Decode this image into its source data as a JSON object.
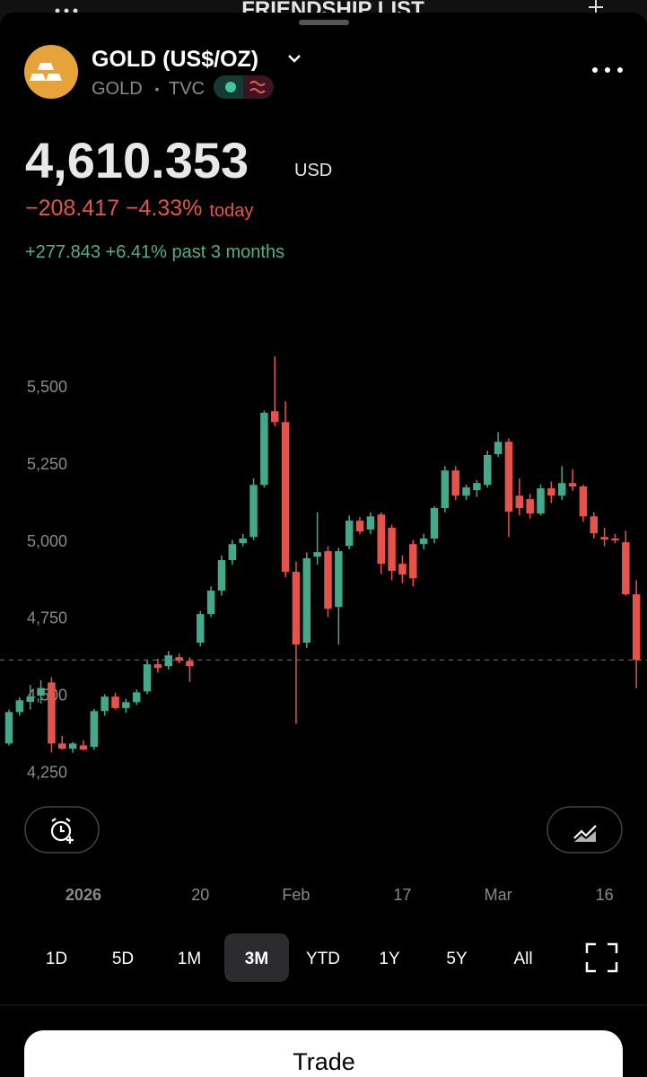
{
  "header": {
    "behind_title": "FRIENDSHIP LIST"
  },
  "instrument": {
    "name": "GOLD (US$/OZ)",
    "symbol": "GOLD",
    "separator": "•",
    "exchange": "TVC"
  },
  "quote": {
    "price": "4,610.353",
    "currency": "USD",
    "change_today": "−208.417 −4.33%",
    "today_label": "today",
    "change_period": "+277.843 +6.41% past 3 months"
  },
  "chart_data": {
    "type": "candlestick",
    "categories": [
      null,
      null,
      null,
      null,
      null,
      null,
      null,
      "2026",
      null,
      null,
      null,
      null,
      null,
      null,
      null,
      null,
      null,
      null,
      "20",
      null,
      null,
      null,
      null,
      null,
      null,
      null,
      null,
      "Feb",
      null,
      null,
      null,
      null,
      null,
      null,
      null,
      null,
      null,
      "17",
      null,
      null,
      null,
      null,
      null,
      null,
      null,
      null,
      "Mar",
      null,
      null,
      null,
      null,
      null,
      null,
      null,
      null,
      null,
      "16",
      null,
      null,
      null
    ],
    "open": [
      4340,
      4442,
      4475,
      4495,
      4538,
      4340,
      4323,
      4334,
      4329,
      4445,
      4492,
      4455,
      4474,
      4509,
      4597,
      4591,
      4620,
      4608,
      4667,
      4760,
      4836,
      4935,
      4990,
      5010,
      5179,
      5418,
      5383,
      4897,
      4667,
      4946,
      4964,
      4783,
      4981,
      5063,
      5034,
      5083,
      5040,
      4923,
      4987,
      4987,
      5005,
      5104,
      5226,
      5144,
      5162,
      5179,
      5279,
      5319,
      5144,
      5133,
      5086,
      5168,
      5144,
      5185,
      5174,
      5077,
      5010,
      5005,
      4993,
      4824
    ],
    "high": [
      4450,
      4490,
      4530,
      4545,
      4555,
      4365,
      4345,
      4350,
      4452,
      4500,
      4505,
      4485,
      4515,
      4610,
      4615,
      4640,
      4632,
      4620,
      4770,
      4850,
      4950,
      5000,
      5020,
      5200,
      5420,
      5596,
      5450,
      4930,
      4960,
      5090,
      4980,
      4975,
      5080,
      5075,
      5090,
      5090,
      5050,
      4950,
      5000,
      5020,
      5110,
      5240,
      5240,
      5180,
      5195,
      5290,
      5350,
      5330,
      5200,
      5150,
      5180,
      5190,
      5240,
      5230,
      5180,
      5090,
      5040,
      5020,
      5030,
      4870
    ],
    "low": [
      4334,
      4430,
      4450,
      4470,
      4311,
      4320,
      4310,
      4318,
      4320,
      4430,
      4450,
      4440,
      4465,
      4500,
      4570,
      4580,
      4600,
      4540,
      4655,
      4750,
      4820,
      4920,
      4980,
      5000,
      5170,
      5370,
      4880,
      4404,
      4650,
      4920,
      4750,
      4661,
      4970,
      5020,
      5020,
      4890,
      4870,
      4860,
      4850,
      4970,
      4990,
      5090,
      5130,
      5130,
      5140,
      5170,
      5270,
      5010,
      5080,
      5070,
      5080,
      5120,
      5130,
      5160,
      5060,
      5005,
      4980,
      4990,
      4820,
      4520
    ],
    "close": [
      4442,
      4480,
      4492,
      4520,
      4340,
      4323,
      4340,
      4320,
      4445,
      4492,
      4455,
      4474,
      4506,
      4597,
      4585,
      4626,
      4608,
      4591,
      4760,
      4836,
      4935,
      4987,
      5005,
      5179,
      5413,
      5383,
      4897,
      4661,
      4941,
      4961,
      4777,
      4964,
      5063,
      5028,
      5077,
      4923,
      4900,
      4888,
      4876,
      5005,
      5104,
      5226,
      5144,
      5171,
      5185,
      5276,
      5319,
      5092,
      5104,
      5086,
      5168,
      5144,
      5185,
      5174,
      5077,
      5022,
      5002,
      4999,
      4824,
      4611
    ],
    "up_color": "#44a98b",
    "down_color": "#e5534b",
    "ylim": [
      4213,
      5640
    ],
    "yticks": [
      {
        "value": 5500,
        "label": "5,500"
      },
      {
        "value": 5250,
        "label": "5,250"
      },
      {
        "value": 5000,
        "label": "5,000"
      },
      {
        "value": 4750,
        "label": "4,750"
      },
      {
        "value": 4500,
        "label": "4,500"
      },
      {
        "value": 4250,
        "label": "4,250"
      }
    ],
    "last_price_line": true
  },
  "ranges": [
    "1D",
    "5D",
    "1M",
    "3M",
    "YTD",
    "1Y",
    "5Y",
    "All"
  ],
  "selected_range": "3M",
  "trade_button": "Trade"
}
